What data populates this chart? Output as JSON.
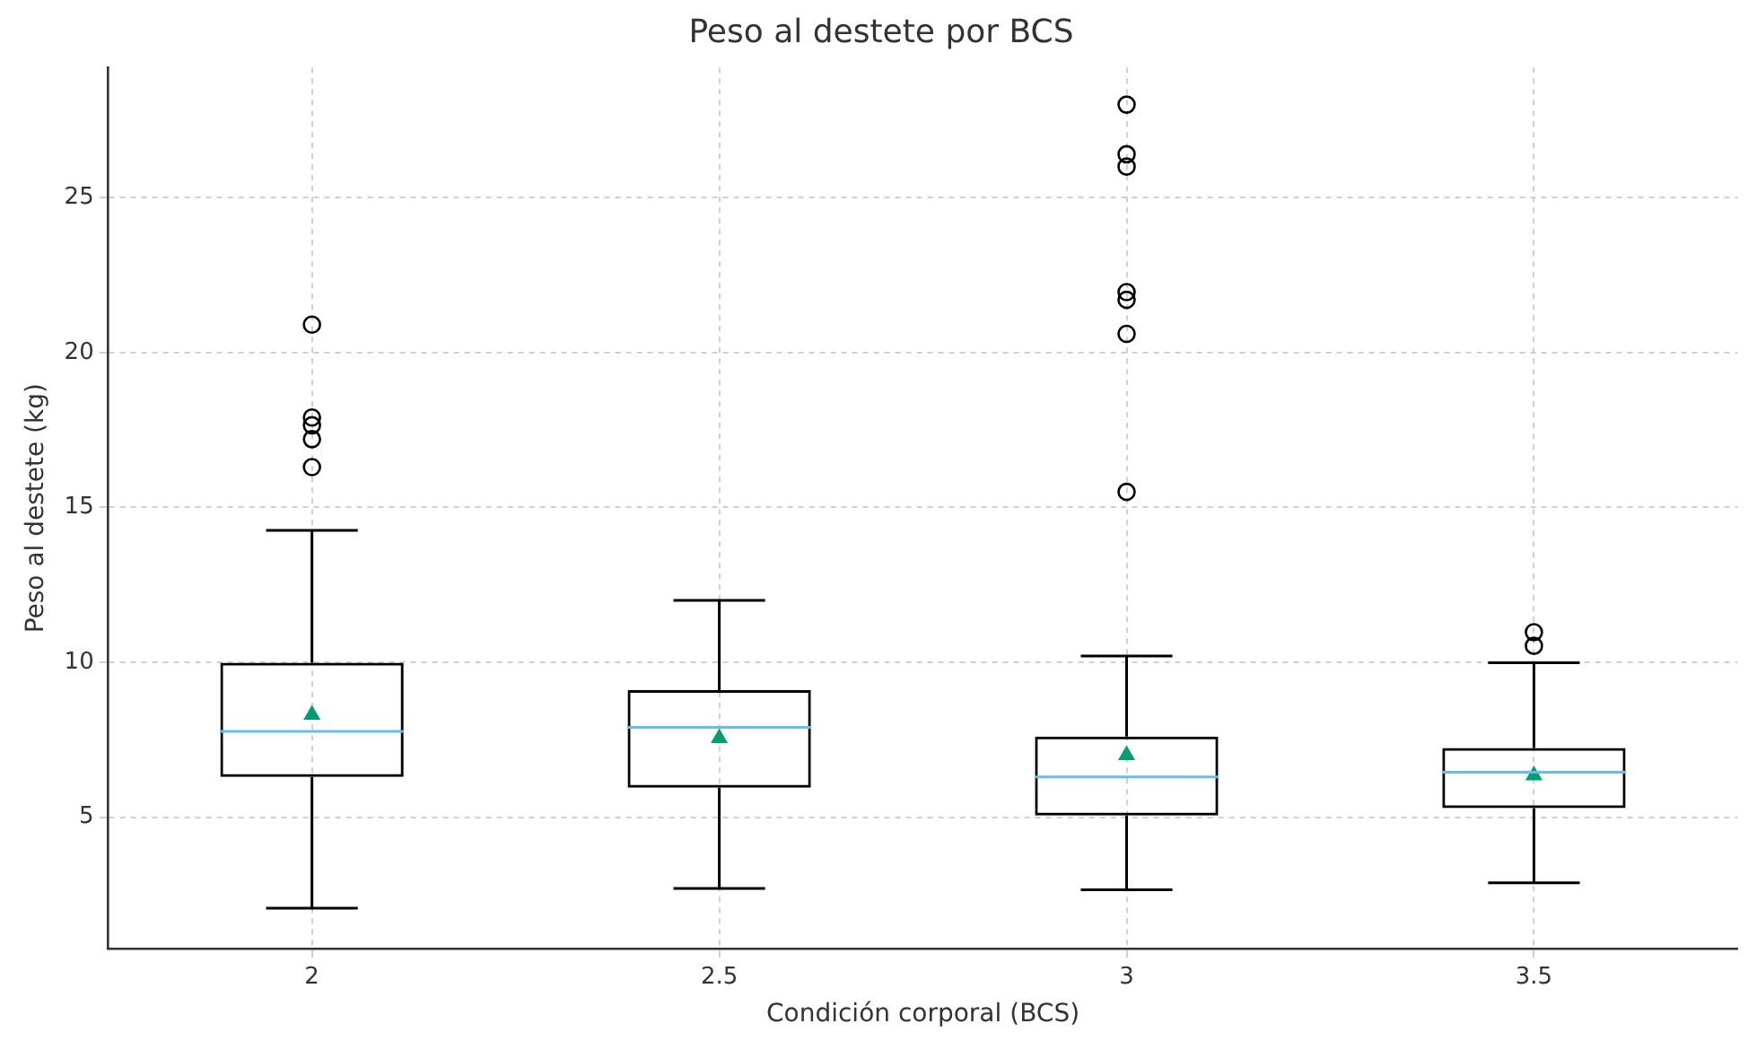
{
  "chart_data": {
    "type": "box",
    "title": "Peso al destete por BCS",
    "xlabel": "Condición corporal (BCS)",
    "ylabel": "Peso al destete (kg)",
    "categories": [
      "2",
      "2.5",
      "3",
      "3.5"
    ],
    "color": "#000000",
    "boxes": [
      {
        "low": 2.06,
        "q1": 6.3,
        "median": 7.77,
        "q3": 9.98,
        "high": 14.26,
        "mean": 8.3,
        "outliers": [
          20.9,
          17.9,
          17.65,
          17.2,
          16.3
        ]
      },
      {
        "low": 2.7,
        "q1": 5.95,
        "median": 7.9,
        "q3": 9.1,
        "high": 12.0,
        "mean": 7.55
      },
      {
        "low": 2.65,
        "q1": 5.05,
        "median": 6.3,
        "q3": 7.6,
        "high": 10.2,
        "mean": 7.0,
        "outliers": [
          28.0,
          26.4,
          26.0,
          21.95,
          21.7,
          20.6,
          15.5
        ]
      },
      {
        "low": 2.88,
        "q1": 5.29,
        "median": 6.45,
        "q3": 7.23,
        "high": 9.98,
        "mean": 6.35,
        "outliers": [
          10.97,
          10.53
        ]
      }
    ],
    "ylim": [
      0.75,
      29.2
    ],
    "yticks": [
      5,
      10,
      15,
      20,
      25
    ],
    "grid": true
  }
}
